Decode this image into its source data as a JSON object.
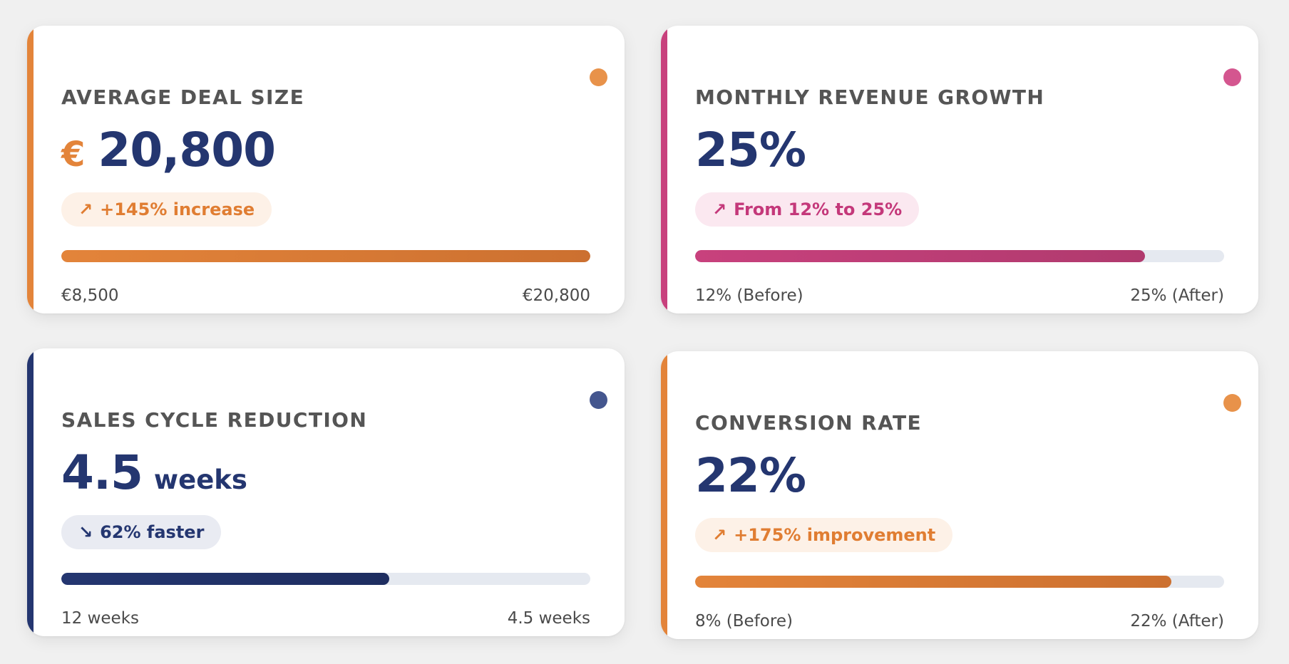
{
  "cards": [
    {
      "title": "AVERAGE DEAL SIZE",
      "value_prefix": "€",
      "value": "20,800",
      "value_suffix": "",
      "badge_arrow": "↗",
      "badge_text": "+145% increase",
      "progress_percent": 100,
      "label_left": "€8,500",
      "label_right": "€20,800",
      "accent_color": "#e3843a",
      "accent_color_dark": "#cc7030",
      "dot_color": "#e8924a",
      "badge_bg": "#fdf1e7",
      "badge_color": "#e07d32",
      "icon": "trend-up-icon"
    },
    {
      "title": "MONTHLY REVENUE GROWTH",
      "value_prefix": "",
      "value": "25%",
      "value_suffix": "",
      "badge_arrow": "↗",
      "badge_text": "From 12% to 25%",
      "progress_percent": 85,
      "label_left": "12% (Before)",
      "label_right": "25% (After)",
      "accent_color": "#c8417d",
      "accent_color_dark": "#b03a6e",
      "dot_color": "#d4568f",
      "badge_bg": "#fbe8f0",
      "badge_color": "#c4387a",
      "icon": "trend-up-icon"
    },
    {
      "title": "SALES CYCLE REDUCTION",
      "value_prefix": "",
      "value": "4.5",
      "value_suffix": "weeks",
      "badge_arrow": "↘",
      "badge_text": "62% faster",
      "progress_percent": 62,
      "label_left": "12 weeks",
      "label_right": "4.5 weeks",
      "accent_color": "#243670",
      "accent_color_dark": "#1e2d60",
      "dot_color": "#44568e",
      "badge_bg": "#e9ebf2",
      "badge_color": "#243670",
      "icon": "trend-down-icon"
    },
    {
      "title": "CONVERSION RATE",
      "value_prefix": "",
      "value": "22%",
      "value_suffix": "",
      "badge_arrow": "↗",
      "badge_text": "+175% improvement",
      "progress_percent": 90,
      "label_left": "8% (Before)",
      "label_right": "22% (After)",
      "accent_color": "#e3843a",
      "accent_color_dark": "#cc7030",
      "dot_color": "#e8924a",
      "badge_bg": "#fdf1e7",
      "badge_color": "#e07d32",
      "icon": "trend-up-icon"
    }
  ]
}
